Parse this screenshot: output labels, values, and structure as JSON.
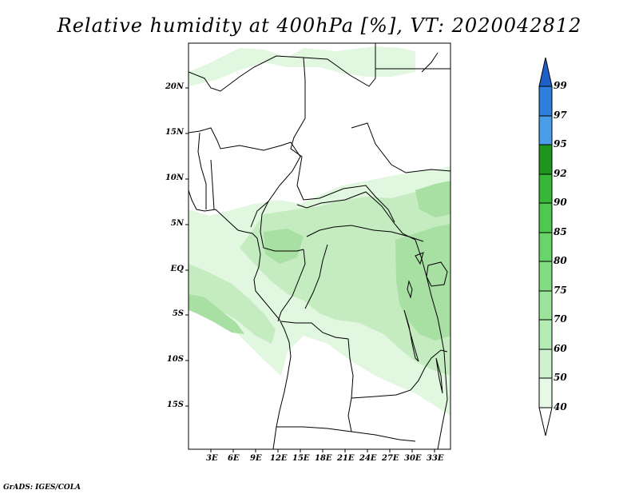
{
  "title": "Relative humidity at 400hPa [%], VT: 2020042812",
  "credit": "GrADS: IGES/COLA",
  "lat_labels": [
    "20N",
    "15N",
    "10N",
    "5N",
    "EQ",
    "5S",
    "10S",
    "15S"
  ],
  "lon_labels": [
    "3E",
    "6E",
    "9E",
    "12E",
    "15E",
    "18E",
    "21E",
    "24E",
    "27E",
    "30E",
    "33E"
  ],
  "colorbar": {
    "levels": [
      "40",
      "50",
      "60",
      "70",
      "75",
      "80",
      "85",
      "90",
      "92",
      "95",
      "97",
      "99"
    ],
    "colors": [
      "#ffffff",
      "#e6f9e6",
      "#cdf2cd",
      "#b4ecb4",
      "#9be49b",
      "#82dc82",
      "#69d469",
      "#4fc84f",
      "#36b836",
      "#1e961e",
      "#4a9ee8",
      "#2f7fdc",
      "#1f5fc8"
    ]
  },
  "field_colors": {
    "light": "#e2f7e0",
    "mid": "#c4ecc0",
    "dark": "#a7e0a2"
  }
}
